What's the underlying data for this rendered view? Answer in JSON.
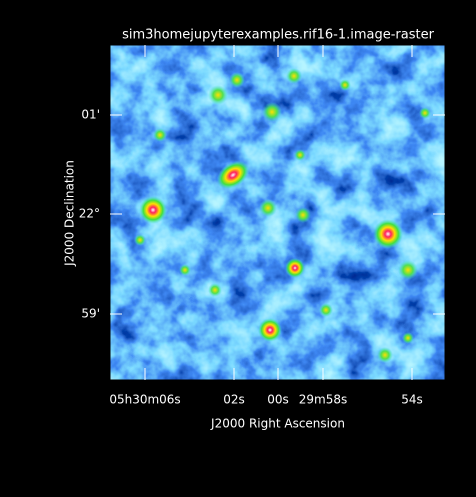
{
  "chart_data": {
    "type": "image",
    "title": "sim3homejupyterexamples.rif16-1.image-raster",
    "xlabel": "J2000 Right Ascension",
    "ylabel": "J2000 Declination",
    "xtick_labels": [
      "05h30m06s",
      "02s",
      "00s",
      "29m58s",
      "54s"
    ],
    "ytick_labels": [
      "01'",
      "22°",
      "59'"
    ]
  }
}
